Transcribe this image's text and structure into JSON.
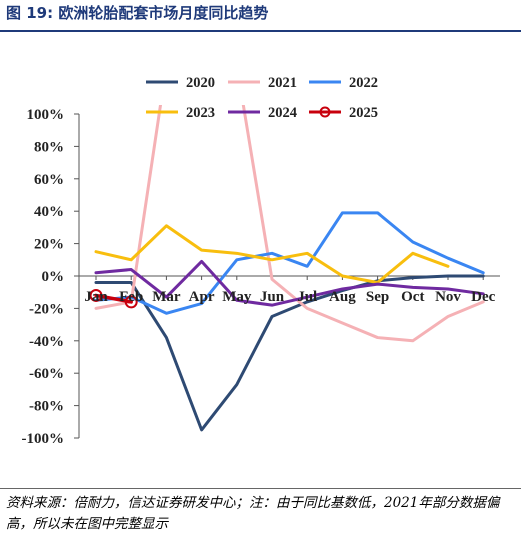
{
  "header": {
    "figure_title": "图 19:  欧洲轮胎配套市场月度同比趋势"
  },
  "footnote": "资料来源：倍耐力，信达证券研发中心；注：由于同比基数低，2021年部分数据偏高，所以未在图中完整显示",
  "chart_data": {
    "type": "line",
    "title": "",
    "xlabel": "",
    "ylabel": "",
    "categories": [
      "Jan",
      "Feb",
      "Mar",
      "Apr",
      "May",
      "Jun",
      "Jul",
      "Aug",
      "Sep",
      "Oct",
      "Nov",
      "Dec"
    ],
    "ylim": [
      -100,
      100
    ],
    "yticks": [
      -100,
      -80,
      -60,
      -40,
      -20,
      0,
      20,
      40,
      60,
      80,
      100
    ],
    "ytick_labels": [
      "-100%",
      "-80%",
      "-60%",
      "-40%",
      "-20%",
      "0%",
      "20%",
      "40%",
      "60%",
      "80%",
      "100%"
    ],
    "legend_position": "top",
    "grid": false,
    "series": [
      {
        "name": "2020",
        "color": "#2e4a73",
        "values": [
          -4,
          -4,
          -38,
          -95,
          -67,
          -25,
          -16,
          -9,
          -3,
          -1,
          0,
          0
        ]
      },
      {
        "name": "2021",
        "color": "#f5b1b5",
        "values": [
          -20,
          -16,
          130,
          null,
          130,
          -2,
          -20,
          -29,
          -38,
          -40,
          -25,
          -16
        ]
      },
      {
        "name": "2022",
        "color": "#3a86f2",
        "values": [
          -15,
          -13,
          -23,
          -17,
          10,
          14,
          6,
          39,
          39,
          21,
          11,
          2
        ]
      },
      {
        "name": "2023",
        "color": "#f8be0e",
        "values": [
          15,
          10,
          31,
          16,
          14,
          10,
          14,
          0,
          -4,
          14,
          6,
          null
        ]
      },
      {
        "name": "2024",
        "color": "#6f2aa0",
        "values": [
          2,
          4,
          -13,
          9,
          -15,
          -18,
          -13,
          -8,
          -5,
          -7,
          -8,
          -11
        ]
      },
      {
        "name": "2025",
        "color": "#c8000d",
        "marker": "circle",
        "values": [
          -12,
          -16,
          null,
          null,
          null,
          null,
          null,
          null,
          null,
          null,
          null,
          null
        ]
      }
    ]
  }
}
